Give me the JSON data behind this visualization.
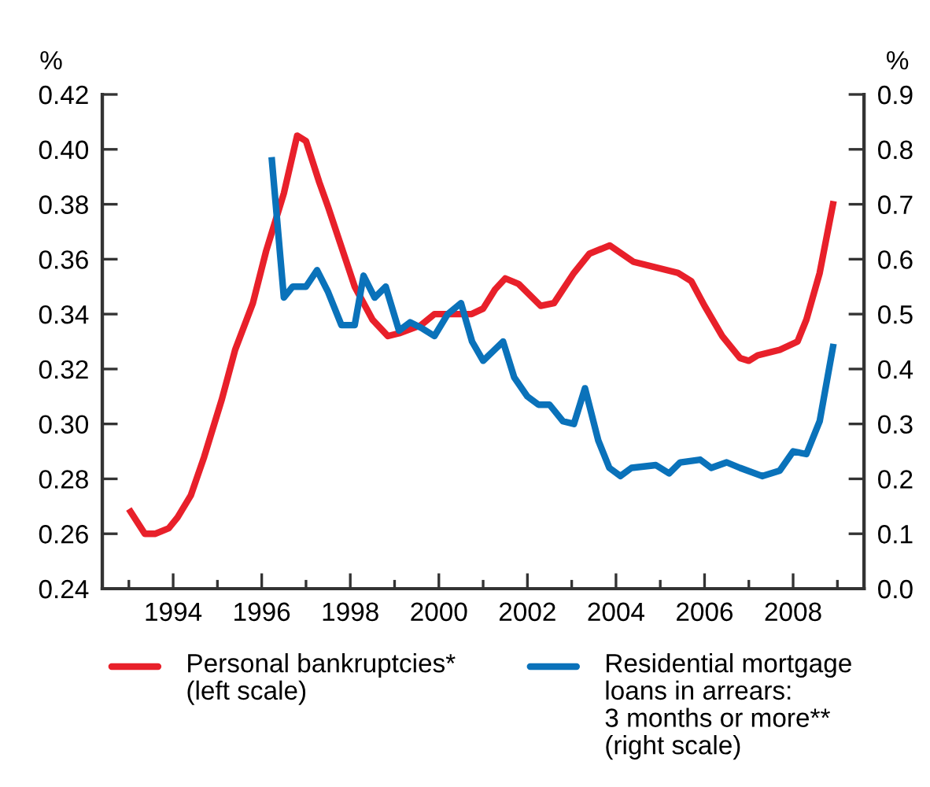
{
  "chart_data": {
    "type": "line",
    "ylabel": "%",
    "y2label": "%",
    "xlim": [
      1992.4,
      2009.6
    ],
    "xticks": [
      {
        "value": 1993,
        "label": null
      },
      1994,
      {
        "value": 1995,
        "label": null
      },
      1996,
      {
        "value": 1997,
        "label": null
      },
      1998,
      {
        "value": 1999,
        "label": null
      },
      2000,
      {
        "value": 2001,
        "label": null
      },
      2002,
      {
        "value": 2003,
        "label": null
      },
      2004,
      {
        "value": 2005,
        "label": null
      },
      2006,
      {
        "value": 2007,
        "label": null
      },
      2008,
      {
        "value": 2009,
        "label": null
      }
    ],
    "ylim": [
      0.24,
      0.42
    ],
    "yticks": [
      {
        "value": 0.24,
        "label": "0.24"
      },
      {
        "value": 0.26,
        "label": "0.26"
      },
      {
        "value": 0.28,
        "label": "0.28"
      },
      {
        "value": 0.3,
        "label": "0.30"
      },
      {
        "value": 0.32,
        "label": "0.32"
      },
      {
        "value": 0.34,
        "label": "0.34"
      },
      {
        "value": 0.36,
        "label": "0.36"
      },
      {
        "value": 0.38,
        "label": "0.38"
      },
      {
        "value": 0.4,
        "label": "0.40"
      },
      {
        "value": 0.42,
        "label": "0.42"
      }
    ],
    "y2lim": [
      0.0,
      0.9
    ],
    "y2ticks": [
      {
        "value": 0,
        "label": "0.0"
      },
      0.1,
      0.2,
      0.3,
      0.4,
      0.5,
      0.6,
      0.7,
      0.8,
      0.9
    ],
    "grid": false,
    "legend": "bottom",
    "marker": "none",
    "line_style": "solid",
    "series": [
      {
        "name": "Personal bankruptcies*\n(left scale)",
        "color": "#e8202a",
        "x": [
          1993.04,
          1993.36,
          1993.6,
          1993.9,
          1994.1,
          1994.4,
          1994.7,
          1995.1,
          1995.4,
          1995.8,
          1996.1,
          1996.5,
          1996.8,
          1997.0,
          1997.3,
          1997.5,
          1998.1,
          1998.5,
          1998.85,
          1999.1,
          1999.6,
          1999.9,
          2000.4,
          2000.74,
          2001.0,
          2001.27,
          2001.5,
          2001.8,
          2002.3,
          2002.6,
          2003.05,
          2003.4,
          2003.86,
          2004.4,
          2004.9,
          2005.4,
          2005.7,
          2006.0,
          2006.4,
          2006.8,
          2007.0,
          2007.2,
          2007.7,
          2008.1,
          2008.3,
          2008.6,
          2008.9
        ],
        "values": [
          0.268,
          0.26,
          0.26,
          0.262,
          0.266,
          0.274,
          0.288,
          0.309,
          0.327,
          0.344,
          0.363,
          0.384,
          0.405,
          0.403,
          0.388,
          0.379,
          0.35,
          0.338,
          0.332,
          0.333,
          0.336,
          0.34,
          0.34,
          0.34,
          0.342,
          0.349,
          0.353,
          0.351,
          0.343,
          0.344,
          0.355,
          0.362,
          0.365,
          0.359,
          0.357,
          0.355,
          0.352,
          0.343,
          0.332,
          0.324,
          0.323,
          0.325,
          0.327,
          0.33,
          0.338,
          0.355,
          0.38
        ]
      },
      {
        "name": "Residential mortgage\nloans in arrears:\n3 months or more**\n(right scale)",
        "color": "#0a72ba",
        "axis": "y2",
        "x": [
          1996.23,
          1996.5,
          1996.7,
          1997.0,
          1997.25,
          1997.5,
          1997.8,
          1998.1,
          1998.3,
          1998.55,
          1998.8,
          1999.1,
          1999.35,
          1999.6,
          1999.9,
          2000.2,
          2000.5,
          2000.75,
          2001.0,
          2001.45,
          2001.7,
          2002.0,
          2002.25,
          2002.5,
          2002.8,
          2003.05,
          2003.3,
          2003.6,
          2003.85,
          2004.1,
          2004.35,
          2004.9,
          2005.2,
          2005.45,
          2005.9,
          2006.15,
          2006.5,
          2006.8,
          2007.3,
          2007.7,
          2008.0,
          2008.3,
          2008.6,
          2008.9
        ],
        "values": [
          0.78,
          0.53,
          0.55,
          0.55,
          0.58,
          0.54,
          0.48,
          0.48,
          0.57,
          0.53,
          0.55,
          0.47,
          0.485,
          0.475,
          0.46,
          0.5,
          0.52,
          0.45,
          0.415,
          0.45,
          0.385,
          0.35,
          0.335,
          0.335,
          0.305,
          0.3,
          0.365,
          0.27,
          0.22,
          0.205,
          0.22,
          0.225,
          0.21,
          0.23,
          0.235,
          0.22,
          0.23,
          0.22,
          0.205,
          0.215,
          0.25,
          0.245,
          0.305,
          0.44
        ]
      }
    ]
  }
}
